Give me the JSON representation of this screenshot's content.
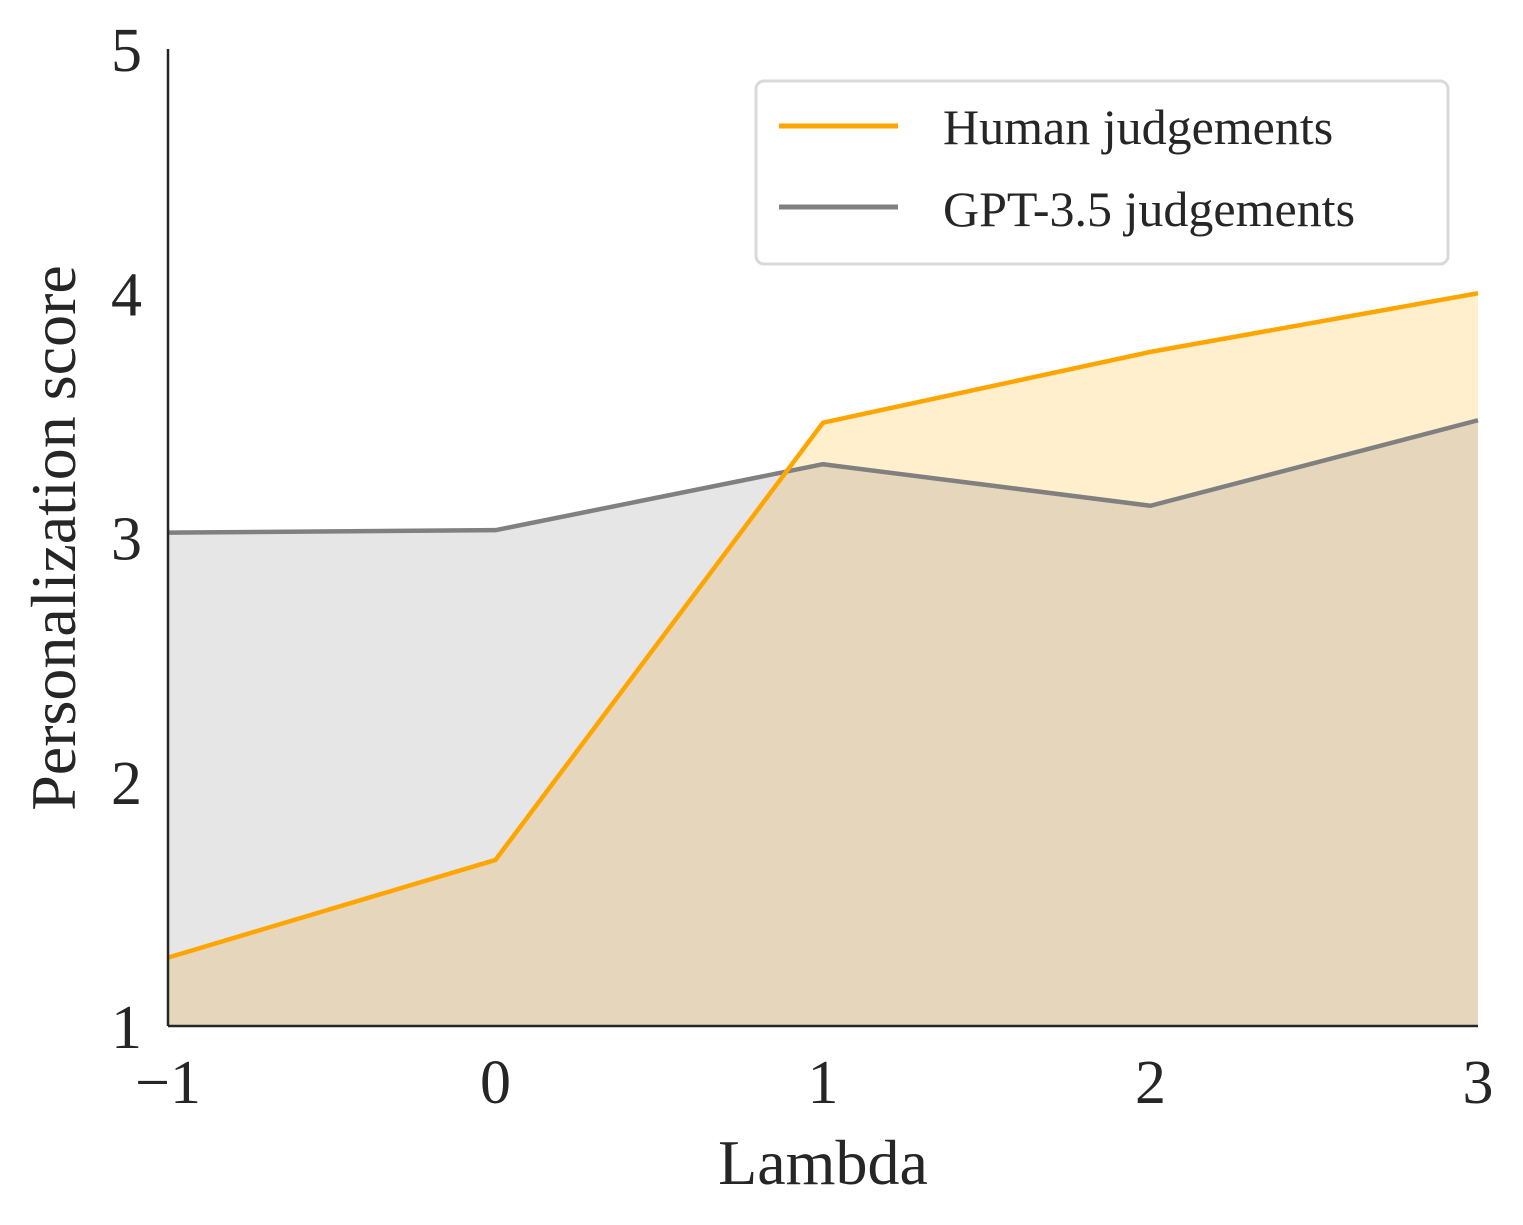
{
  "chart_data": {
    "type": "area",
    "x": [
      -1,
      0,
      1,
      2,
      3
    ],
    "x_tick_labels": [
      "−1",
      "0",
      "1",
      "2",
      "3"
    ],
    "y_tick_labels": [
      "1",
      "2",
      "3",
      "4",
      "5"
    ],
    "xlim": [
      -1,
      3
    ],
    "ylim": [
      1,
      5
    ],
    "xlabel": "Lambda",
    "ylabel": "Personalization score",
    "grid": false,
    "legend_position": "top-right",
    "series": [
      {
        "name": "Human judgements",
        "values": [
          1.28,
          1.68,
          3.47,
          3.76,
          4.0
        ],
        "line_color": "#FFA500",
        "fill_color": "#FFEFCC"
      },
      {
        "name": "GPT-3.5 judgements",
        "values": [
          3.02,
          3.03,
          3.3,
          3.13,
          3.48
        ],
        "line_color": "#808080",
        "fill_color": "#E6E6E6"
      }
    ],
    "overlap_fill_color": "#E6D7BC"
  }
}
